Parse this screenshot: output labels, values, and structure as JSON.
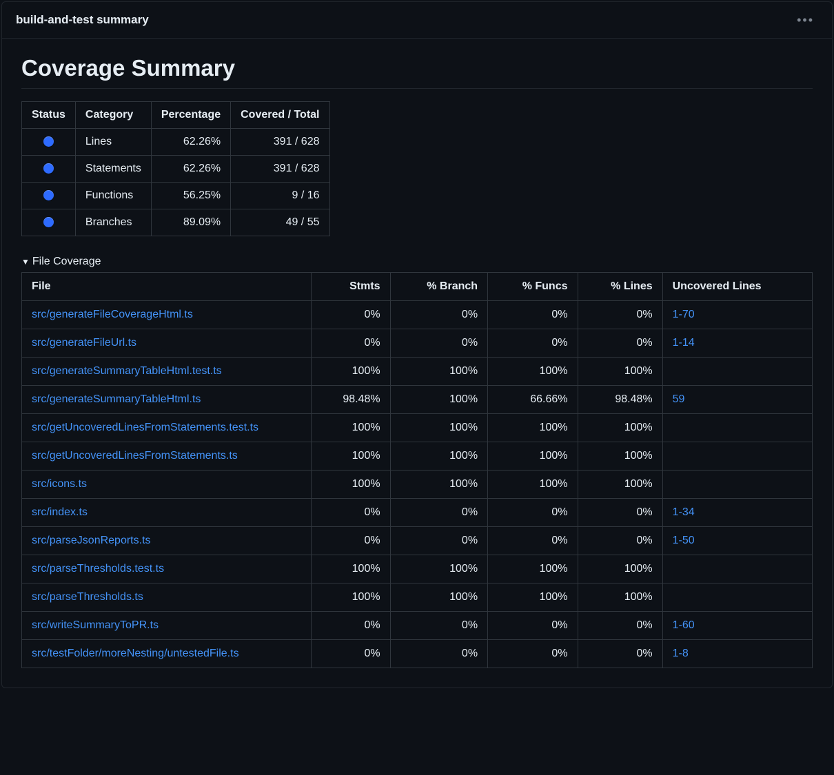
{
  "colors": {
    "background": "#0d1117",
    "border": "#30363d",
    "border_soft": "#21262d",
    "text": "#e6edf3",
    "link": "#4493f8",
    "status_dot": "#2e6bff"
  },
  "header": {
    "title": "build-and-test summary"
  },
  "page": {
    "title": "Coverage Summary"
  },
  "summary_table": {
    "headers": {
      "status": "Status",
      "category": "Category",
      "percentage": "Percentage",
      "covered_total": "Covered / Total"
    },
    "rows": [
      {
        "category": "Lines",
        "percentage": "62.26%",
        "covered_total": "391 / 628"
      },
      {
        "category": "Statements",
        "percentage": "62.26%",
        "covered_total": "391 / 628"
      },
      {
        "category": "Functions",
        "percentage": "56.25%",
        "covered_total": "9 / 16"
      },
      {
        "category": "Branches",
        "percentage": "89.09%",
        "covered_total": "49 / 55"
      }
    ]
  },
  "details": {
    "summary_label": "File Coverage",
    "headers": {
      "file": "File",
      "stmts": "Stmts",
      "branch": "% Branch",
      "funcs": "% Funcs",
      "lines": "% Lines",
      "uncovered": "Uncovered Lines"
    },
    "rows": [
      {
        "file": "src/generateFileCoverageHtml.ts",
        "stmts": "0%",
        "branch": "0%",
        "funcs": "0%",
        "lines": "0%",
        "uncovered": "1-70"
      },
      {
        "file": "src/generateFileUrl.ts",
        "stmts": "0%",
        "branch": "0%",
        "funcs": "0%",
        "lines": "0%",
        "uncovered": "1-14"
      },
      {
        "file": "src/generateSummaryTableHtml.test.ts",
        "stmts": "100%",
        "branch": "100%",
        "funcs": "100%",
        "lines": "100%",
        "uncovered": ""
      },
      {
        "file": "src/generateSummaryTableHtml.ts",
        "stmts": "98.48%",
        "branch": "100%",
        "funcs": "66.66%",
        "lines": "98.48%",
        "uncovered": "59"
      },
      {
        "file": "src/getUncoveredLinesFromStatements.test.ts",
        "stmts": "100%",
        "branch": "100%",
        "funcs": "100%",
        "lines": "100%",
        "uncovered": ""
      },
      {
        "file": "src/getUncoveredLinesFromStatements.ts",
        "stmts": "100%",
        "branch": "100%",
        "funcs": "100%",
        "lines": "100%",
        "uncovered": ""
      },
      {
        "file": "src/icons.ts",
        "stmts": "100%",
        "branch": "100%",
        "funcs": "100%",
        "lines": "100%",
        "uncovered": ""
      },
      {
        "file": "src/index.ts",
        "stmts": "0%",
        "branch": "0%",
        "funcs": "0%",
        "lines": "0%",
        "uncovered": "1-34"
      },
      {
        "file": "src/parseJsonReports.ts",
        "stmts": "0%",
        "branch": "0%",
        "funcs": "0%",
        "lines": "0%",
        "uncovered": "1-50"
      },
      {
        "file": "src/parseThresholds.test.ts",
        "stmts": "100%",
        "branch": "100%",
        "funcs": "100%",
        "lines": "100%",
        "uncovered": ""
      },
      {
        "file": "src/parseThresholds.ts",
        "stmts": "100%",
        "branch": "100%",
        "funcs": "100%",
        "lines": "100%",
        "uncovered": ""
      },
      {
        "file": "src/writeSummaryToPR.ts",
        "stmts": "0%",
        "branch": "0%",
        "funcs": "0%",
        "lines": "0%",
        "uncovered": "1-60"
      },
      {
        "file": "src/testFolder/moreNesting/untestedFile.ts",
        "stmts": "0%",
        "branch": "0%",
        "funcs": "0%",
        "lines": "0%",
        "uncovered": "1-8"
      }
    ]
  }
}
